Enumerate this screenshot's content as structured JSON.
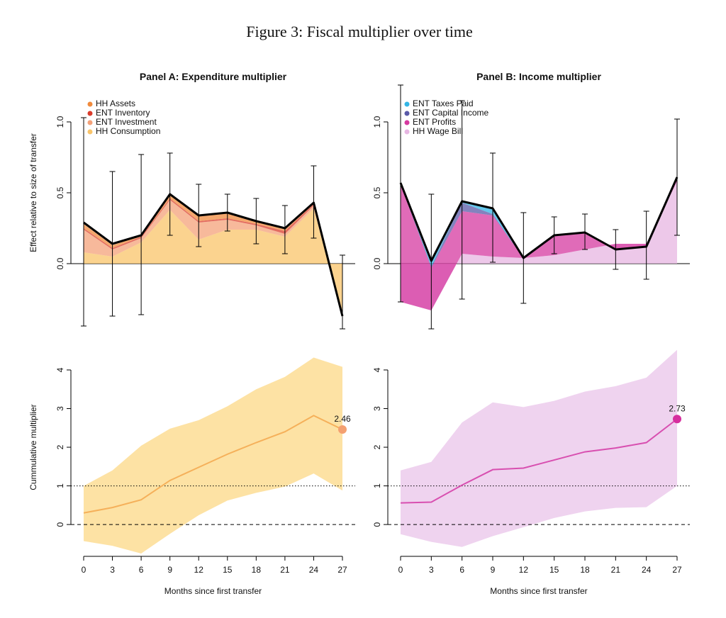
{
  "figure_title": "Figure 3: Fiscal multiplier over time",
  "chart_data": [
    {
      "type": "area",
      "stacked": true,
      "title": "Panel A: Expenditure multiplier",
      "ylabel": "Effect relative to size of transfer",
      "legend": "topleft",
      "x": [
        0,
        3,
        6,
        9,
        12,
        15,
        18,
        21,
        24,
        27
      ],
      "xlim": [
        0,
        27
      ],
      "ylim": [
        -0.45,
        1.25
      ],
      "yticks": [
        {
          "value": 0,
          "label": "0.0"
        },
        {
          "value": 0.5,
          "label": "0.5"
        },
        {
          "value": 1,
          "label": "1.0"
        }
      ],
      "reference_lines": [
        {
          "value": 0,
          "style": "solid"
        }
      ],
      "series": [
        {
          "name": "HH Assets",
          "color": "#f08a3c",
          "values": [
            0.03,
            0.02,
            0.01,
            0.03,
            0.04,
            0.04,
            0.02,
            0.02,
            0.01,
            0
          ]
        },
        {
          "name": "ENT Inventory",
          "color": "#d93b2b",
          "values": [
            0.01,
            0.01,
            0.01,
            0.01,
            0.01,
            0.01,
            0.01,
            0.02,
            0.01,
            0
          ]
        },
        {
          "name": "ENT Investment",
          "color": "#f4a27a",
          "values": [
            0.16,
            0.05,
            0.03,
            0.07,
            0.12,
            0.07,
            0.03,
            0.02,
            0.02,
            0
          ]
        },
        {
          "name": "HH Consumption",
          "color": "#f9c46a",
          "values": [
            0.08,
            0.05,
            0.15,
            0.38,
            0.17,
            0.24,
            0.24,
            0.19,
            0.39,
            -0.37
          ]
        }
      ],
      "total": [
        0.29,
        0.14,
        0.2,
        0.49,
        0.34,
        0.36,
        0.3,
        0.25,
        0.43,
        -0.37
      ],
      "ci_low": [
        -0.44,
        -0.37,
        -0.36,
        0.2,
        0.12,
        0.23,
        0.14,
        0.07,
        0.18,
        -0.46
      ],
      "ci_high": [
        1.03,
        0.65,
        0.77,
        0.78,
        0.56,
        0.49,
        0.46,
        0.41,
        0.69,
        0.06
      ]
    },
    {
      "type": "area",
      "stacked": true,
      "title": "Panel B: Income multiplier",
      "legend": "topleft",
      "x": [
        0,
        3,
        6,
        9,
        12,
        15,
        18,
        21,
        24,
        27
      ],
      "xlim": [
        0,
        27
      ],
      "ylim": [
        -0.45,
        1.25
      ],
      "yticks": [
        {
          "value": 0,
          "label": "0.0"
        },
        {
          "value": 0.5,
          "label": "0.5"
        },
        {
          "value": 1,
          "label": "1.0"
        }
      ],
      "reference_lines": [
        {
          "value": 0,
          "style": "solid"
        }
      ],
      "series": [
        {
          "name": "ENT Taxes Paid",
          "color": "#33b5e5",
          "values": [
            0,
            0.04,
            0.01,
            0.04,
            0,
            0,
            0,
            0,
            0,
            0
          ]
        },
        {
          "name": "ENT Capital Income",
          "color": "#5a5aa8",
          "values": [
            0.01,
            0.01,
            0.06,
            0.01,
            0,
            0,
            0,
            0,
            0,
            0
          ]
        },
        {
          "name": "ENT Profits",
          "color": "#d63aa0",
          "values": [
            0.83,
            0.3,
            0.3,
            0.29,
            0,
            0.14,
            0.12,
            -0.04,
            -0.02,
            0.03
          ]
        },
        {
          "name": "HH Wage Bill",
          "color": "#e7b6e2",
          "values": [
            -0.27,
            -0.33,
            0.07,
            0.05,
            0.04,
            0.06,
            0.1,
            0.14,
            0.14,
            0.58
          ]
        }
      ],
      "total": [
        0.57,
        0.02,
        0.44,
        0.39,
        0.04,
        0.2,
        0.22,
        0.1,
        0.12,
        0.61
      ],
      "ci_low": [
        -0.27,
        -0.46,
        -0.25,
        0.01,
        -0.28,
        0.07,
        0.1,
        -0.04,
        -0.11,
        0.2
      ],
      "ci_high": [
        1.26,
        0.49,
        1.15,
        0.78,
        0.36,
        0.33,
        0.35,
        0.24,
        0.37,
        1.02
      ]
    },
    {
      "type": "line",
      "ylabel": "Cummulative multiplier",
      "xlabel": "Months since first transfer",
      "x": [
        0,
        3,
        6,
        9,
        12,
        15,
        18,
        21,
        24,
        27
      ],
      "xlim": [
        0,
        27
      ],
      "xticks": [
        0,
        3,
        6,
        9,
        12,
        15,
        18,
        21,
        24,
        27
      ],
      "ylim": [
        -0.75,
        4.55
      ],
      "yticks": [
        0,
        1,
        2,
        3,
        4
      ],
      "reference_lines": [
        {
          "value": 1,
          "style": "dotted"
        },
        {
          "value": 0,
          "style": "dashed"
        }
      ],
      "color": "#f5b05a",
      "band_color": "#fde2a4",
      "point_color": "#f4a070",
      "values": [
        0.3,
        0.44,
        0.64,
        1.14,
        1.48,
        1.82,
        2.12,
        2.4,
        2.82,
        2.46
      ],
      "value_labels": [
        null,
        null,
        null,
        null,
        null,
        null,
        null,
        null,
        null,
        "2.46"
      ],
      "ci_low": [
        -0.43,
        -0.55,
        -0.75,
        -0.24,
        0.24,
        0.62,
        0.82,
        0.98,
        1.32,
        0.88
      ],
      "ci_high": [
        1.0,
        1.4,
        2.04,
        2.48,
        2.7,
        3.06,
        3.5,
        3.82,
        4.32,
        4.08
      ]
    },
    {
      "type": "line",
      "xlabel": "Months since first transfer",
      "x": [
        0,
        3,
        6,
        9,
        12,
        15,
        18,
        21,
        24,
        27
      ],
      "xlim": [
        0,
        27
      ],
      "xticks": [
        0,
        3,
        6,
        9,
        12,
        15,
        18,
        21,
        24,
        27
      ],
      "ylim": [
        -0.75,
        4.55
      ],
      "yticks": [
        0,
        1,
        2,
        3,
        4
      ],
      "reference_lines": [
        {
          "value": 1,
          "style": "dotted"
        },
        {
          "value": 0,
          "style": "dashed"
        }
      ],
      "color": "#d84fb0",
      "band_color": "#efd3ef",
      "point_color": "#d62e9e",
      "values": [
        0.56,
        0.58,
        1.02,
        1.42,
        1.46,
        1.67,
        1.88,
        1.98,
        2.12,
        2.73
      ],
      "value_labels": [
        null,
        null,
        null,
        null,
        null,
        null,
        null,
        null,
        null,
        "2.73"
      ],
      "ci_low": [
        -0.25,
        -0.45,
        -0.58,
        -0.3,
        -0.07,
        0.17,
        0.34,
        0.43,
        0.45,
        1.0
      ],
      "ci_high": [
        1.4,
        1.62,
        2.64,
        3.16,
        3.04,
        3.2,
        3.44,
        3.58,
        3.8,
        4.52
      ]
    }
  ]
}
